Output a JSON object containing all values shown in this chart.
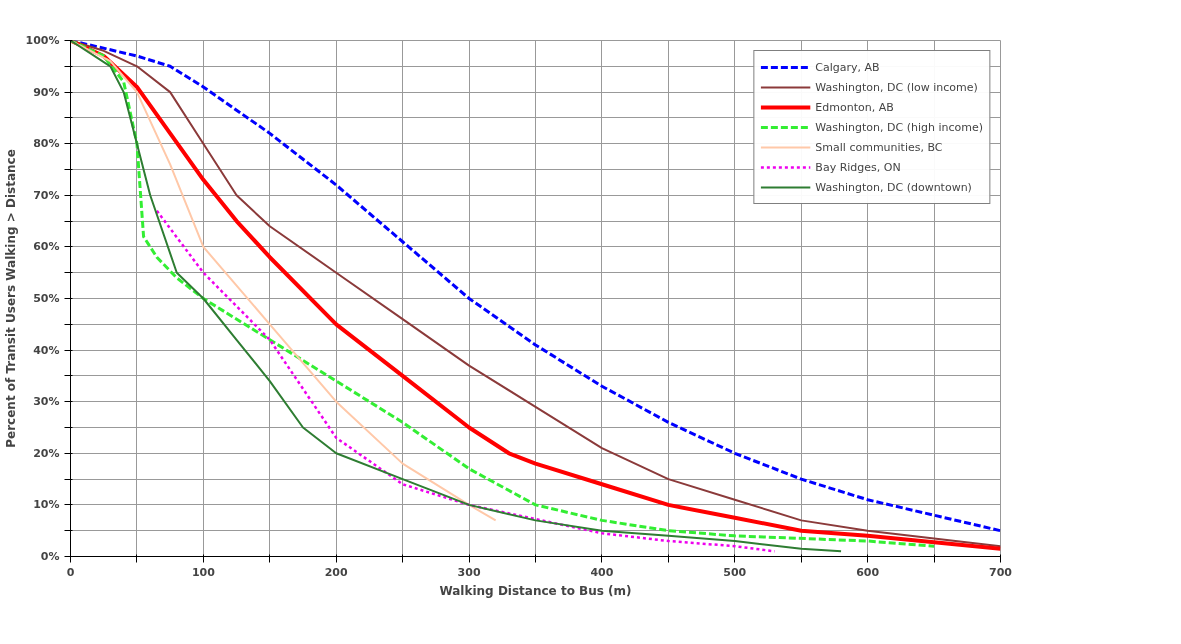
{
  "chart_data": {
    "type": "line",
    "xlabel": "Walking Distance to Bus (m)",
    "ylabel": "Percent of Transit Users Walking > Distance",
    "xlim": [
      0,
      700
    ],
    "ylim": [
      0,
      100
    ],
    "xticks": [
      0,
      {
        "value": 50,
        "label": null
      },
      100,
      {
        "value": 150,
        "label": null
      },
      200,
      {
        "value": 250,
        "label": null
      },
      300,
      {
        "value": 350,
        "label": null
      },
      400,
      {
        "value": 450,
        "label": null
      },
      500,
      {
        "value": 550,
        "label": null
      },
      600,
      {
        "value": 650,
        "label": null
      },
      700
    ],
    "yticks": [
      {
        "value": 0,
        "label": "0%"
      },
      {
        "value": 5,
        "label": null
      },
      {
        "value": 10,
        "label": "10%"
      },
      {
        "value": 15,
        "label": null
      },
      {
        "value": 20,
        "label": "20%"
      },
      {
        "value": 25,
        "label": null
      },
      {
        "value": 30,
        "label": "30%"
      },
      {
        "value": 35,
        "label": null
      },
      {
        "value": 40,
        "label": "40%"
      },
      {
        "value": 45,
        "label": null
      },
      {
        "value": 50,
        "label": "50%"
      },
      {
        "value": 55,
        "label": null
      },
      {
        "value": 60,
        "label": "60%"
      },
      {
        "value": 65,
        "label": null
      },
      {
        "value": 70,
        "label": "70%"
      },
      {
        "value": 75,
        "label": null
      },
      {
        "value": 80,
        "label": "80%"
      },
      {
        "value": 85,
        "label": null
      },
      {
        "value": 90,
        "label": "90%"
      },
      {
        "value": 95,
        "label": null
      },
      {
        "value": 100,
        "label": "100%"
      }
    ],
    "grid": true,
    "legend": "top right",
    "series": [
      {
        "name": "Calgary, AB",
        "color": "#0000ff",
        "line_style": "dashed",
        "x": [
          0,
          50,
          75,
          100,
          150,
          200,
          250,
          300,
          350,
          400,
          450,
          500,
          550,
          600,
          650,
          700
        ],
        "values": [
          100,
          97,
          95,
          91,
          82,
          72,
          61,
          50,
          41,
          33,
          26,
          20,
          15,
          11,
          8,
          5
        ]
      },
      {
        "name": "Washington, DC (low income)",
        "color": "#8b3a3a",
        "line_style": "solid",
        "x": [
          0,
          25,
          50,
          75,
          100,
          125,
          150,
          200,
          250,
          300,
          350,
          400,
          450,
          500,
          550,
          600,
          700
        ],
        "values": [
          100,
          98,
          95,
          90,
          80,
          70,
          64,
          55,
          46,
          37,
          29,
          21,
          15,
          11,
          7,
          5,
          2
        ]
      },
      {
        "name": "Edmonton, AB",
        "color": "#ff0000",
        "line_style": "solid",
        "x": [
          0,
          25,
          50,
          75,
          100,
          125,
          150,
          200,
          250,
          300,
          330,
          350,
          400,
          450,
          500,
          550,
          600,
          700
        ],
        "values": [
          100,
          97,
          91,
          82,
          73,
          65,
          58,
          45,
          35,
          25,
          20,
          18,
          14,
          10,
          7.5,
          5,
          4,
          1.5
        ]
      },
      {
        "name": "Washington, DC (high income)",
        "color": "#33ee33",
        "line_style": "dashed",
        "x": [
          0,
          25,
          40,
          50,
          55,
          65,
          80,
          100,
          150,
          200,
          250,
          300,
          350,
          400,
          450,
          500,
          600,
          650
        ],
        "values": [
          100,
          97,
          92,
          80,
          62,
          58,
          54,
          50,
          42,
          34,
          26,
          17,
          10,
          7,
          5,
          4,
          3,
          2
        ]
      },
      {
        "name": "Small communities, BC",
        "color": "#ffc8a8",
        "line_style": "solid",
        "x": [
          0,
          30,
          50,
          75,
          100,
          150,
          200,
          250,
          300,
          320
        ],
        "values": [
          100,
          96,
          90,
          76,
          60,
          45,
          30,
          18,
          10,
          7
        ]
      },
      {
        "name": "Bay Ridges, ON",
        "color": "#ee00ee",
        "line_style": "dotted",
        "x": [
          65,
          100,
          150,
          200,
          250,
          300,
          400,
          450,
          500,
          530
        ],
        "values": [
          67,
          55,
          42,
          23,
          14,
          10,
          4.5,
          3,
          2,
          1
        ]
      },
      {
        "name": "Washington, DC (downtown)",
        "color": "#2e7d32",
        "line_style": "solid",
        "x": [
          0,
          30,
          40,
          50,
          60,
          80,
          100,
          125,
          150,
          175,
          200,
          250,
          300,
          350,
          400,
          450,
          500,
          550,
          580
        ],
        "values": [
          100,
          95,
          90,
          80,
          70,
          55,
          50,
          42,
          34,
          25,
          20,
          15,
          10,
          7,
          5,
          4,
          3,
          1.5,
          1
        ]
      }
    ]
  }
}
